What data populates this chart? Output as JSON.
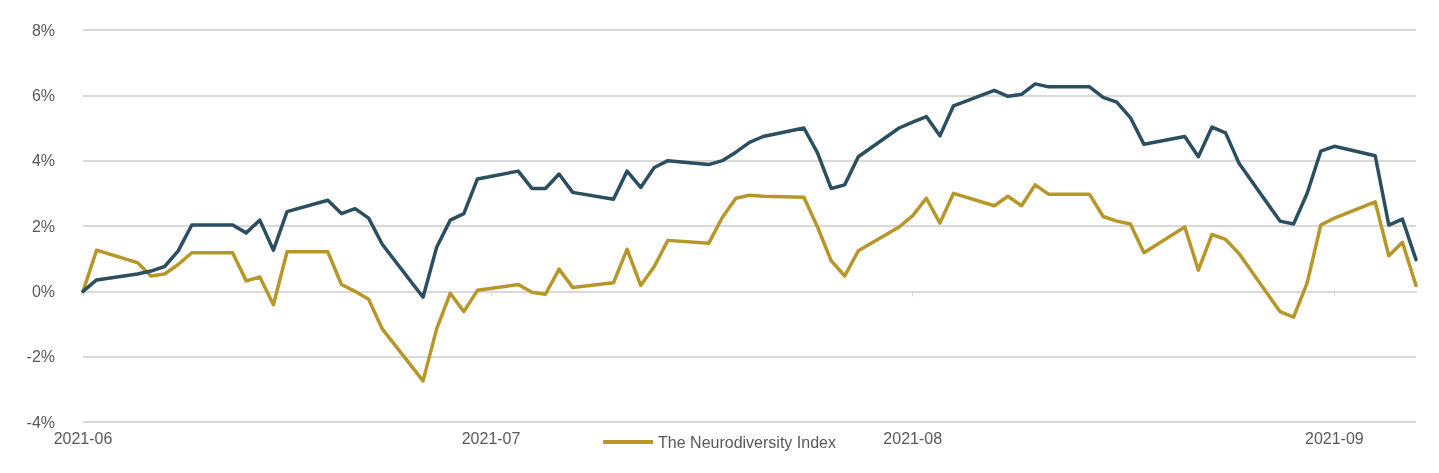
{
  "chart_data": {
    "type": "line",
    "x": [
      "2021-06-01",
      "2021-06-02",
      "2021-06-05",
      "2021-06-06",
      "2021-06-07",
      "2021-06-08",
      "2021-06-09",
      "2021-06-12",
      "2021-06-13",
      "2021-06-14",
      "2021-06-15",
      "2021-06-16",
      "2021-06-19",
      "2021-06-20",
      "2021-06-21",
      "2021-06-22",
      "2021-06-23",
      "2021-06-26",
      "2021-06-27",
      "2021-06-28",
      "2021-06-29",
      "2021-06-30",
      "2021-07-03",
      "2021-07-04",
      "2021-07-05",
      "2021-07-06",
      "2021-07-07",
      "2021-07-10",
      "2021-07-11",
      "2021-07-12",
      "2021-07-13",
      "2021-07-14",
      "2021-07-17",
      "2021-07-18",
      "2021-07-19",
      "2021-07-20",
      "2021-07-21",
      "2021-07-24",
      "2021-07-25",
      "2021-07-26",
      "2021-07-27",
      "2021-07-28",
      "2021-07-31",
      "2021-08-01",
      "2021-08-02",
      "2021-08-03",
      "2021-08-04",
      "2021-08-07",
      "2021-08-08",
      "2021-08-09",
      "2021-08-10",
      "2021-08-11",
      "2021-08-14",
      "2021-08-15",
      "2021-08-16",
      "2021-08-17",
      "2021-08-18",
      "2021-08-21",
      "2021-08-22",
      "2021-08-23",
      "2021-08-24",
      "2021-08-25",
      "2021-08-28",
      "2021-08-29",
      "2021-08-30",
      "2021-08-31",
      "2021-09-01",
      "2021-09-04",
      "2021-09-05",
      "2021-09-06",
      "2021-09-07"
    ],
    "series": [
      {
        "name": "The Neurodiversity Index",
        "color": "#b8972a",
        "values": [
          0,
          1.26,
          0.88,
          0.47,
          0.53,
          0.82,
          1.18,
          1.18,
          0.32,
          0.44,
          -0.41,
          1.21,
          1.21,
          0.21,
          0,
          -0.24,
          -1.15,
          -2.74,
          -1.15,
          -0.06,
          -0.62,
          0.03,
          0.21,
          -0.03,
          -0.09,
          0.68,
          0.12,
          0.26,
          1.29,
          0.18,
          0.76,
          1.56,
          1.47,
          2.26,
          2.85,
          2.94,
          2.91,
          2.88,
          1.97,
          0.94,
          0.47,
          1.24,
          1.97,
          2.32,
          2.85,
          2.09,
          3.0,
          2.62,
          2.91,
          2.62,
          3.26,
          2.97,
          2.97,
          2.29,
          2.15,
          2.06,
          1.18,
          1.97,
          0.65,
          1.74,
          1.59,
          1.15,
          -0.62,
          -0.79,
          0.26,
          2.03,
          2.24,
          2.74,
          1.09,
          1.5,
          0.18
        ]
      },
      {
        "color": "#2b4f60",
        "values": [
          0,
          0.35,
          0.53,
          0.62,
          0.76,
          1.24,
          2.03,
          2.03,
          1.79,
          2.18,
          1.26,
          2.44,
          2.79,
          2.38,
          2.53,
          2.24,
          1.44,
          -0.18,
          1.35,
          2.18,
          2.38,
          3.44,
          3.68,
          3.15,
          3.15,
          3.59,
          3.03,
          2.82,
          3.68,
          3.18,
          3.79,
          4.0,
          3.88,
          4.0,
          4.26,
          4.56,
          4.74,
          5.0,
          4.24,
          3.15,
          3.26,
          4.12,
          5.0,
          5.18,
          5.35,
          4.76,
          5.68,
          6.15,
          5.97,
          6.03,
          6.35,
          6.26,
          6.26,
          5.94,
          5.79,
          5.32,
          4.5,
          4.74,
          4.12,
          5.03,
          4.85,
          3.91,
          2.15,
          2.06,
          3.0,
          4.29,
          4.44,
          4.15,
          2.03,
          2.21,
          0.97
        ]
      }
    ],
    "xlim": [
      "2021-06-01",
      "2021-09-07"
    ],
    "xticks": [
      {
        "value": "2021-06-01",
        "label": "2021-06"
      },
      {
        "value": "2021-07-01",
        "label": "2021-07"
      },
      {
        "value": "2021-08-01",
        "label": "2021-08"
      },
      {
        "value": "2021-09-01",
        "label": "2021-09"
      }
    ],
    "ylim": [
      -4,
      8
    ],
    "yticks": [
      {
        "value": -4,
        "label": "-4%"
      },
      {
        "value": -2,
        "label": "-2%"
      },
      {
        "value": 0,
        "label": "0%"
      },
      {
        "value": 2,
        "label": "2%"
      },
      {
        "value": 4,
        "label": "4%"
      },
      {
        "value": 6,
        "label": "6%"
      },
      {
        "value": 8,
        "label": "8%"
      }
    ],
    "grid": "y",
    "legend": "bottom",
    "marker": "none",
    "line_style": "solid"
  }
}
